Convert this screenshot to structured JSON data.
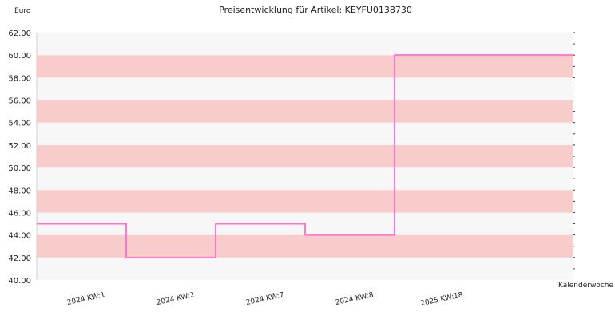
{
  "chart_data": {
    "type": "line",
    "step": true,
    "title": "Preisentwicklung für Artikel: KEYFU0138730",
    "ylabel": "Euro",
    "xlabel": "Kalenderwoche",
    "ylim": [
      40,
      62
    ],
    "ytick_step": 2,
    "grid": "horizontal bands",
    "band_colors": [
      "#f7f7f7",
      "#f9cccc"
    ],
    "line_color": "#ff77cc",
    "categories": [
      "2024 KW:1",
      "2024 KW:2",
      "2024 KW:7",
      "2024 KW:8",
      "2025 KW:18"
    ],
    "values": [
      45.0,
      42.0,
      45.0,
      44.0,
      60.0
    ]
  }
}
